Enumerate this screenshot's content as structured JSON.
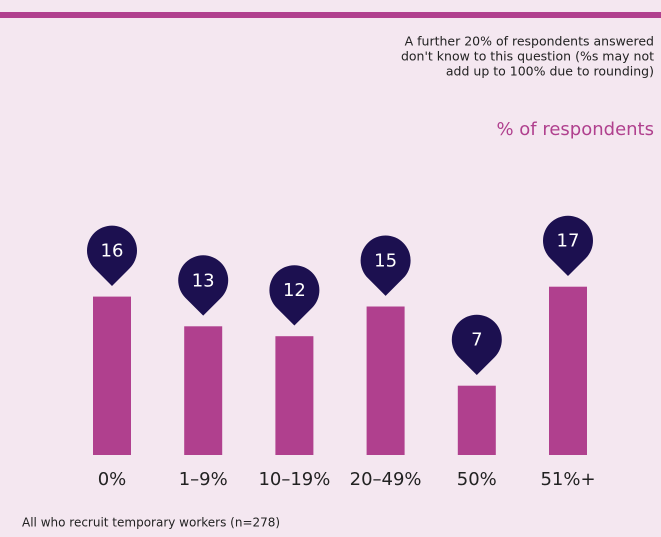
{
  "chart_data": {
    "type": "bar",
    "note": [
      "A further 20% of respondents answered",
      "don't know to this question (%s may not",
      "add up to 100% due to rounding)"
    ],
    "legend_label": "% of respondents",
    "categories": [
      "0%",
      "1–9%",
      "10–19%",
      "20–49%",
      "50%",
      "51%+"
    ],
    "values": [
      16,
      13,
      12,
      15,
      7,
      17
    ],
    "color": "#b0408e",
    "label_color": "#1c1050",
    "footnote": "All who recruit temporary workers (n=278)"
  }
}
